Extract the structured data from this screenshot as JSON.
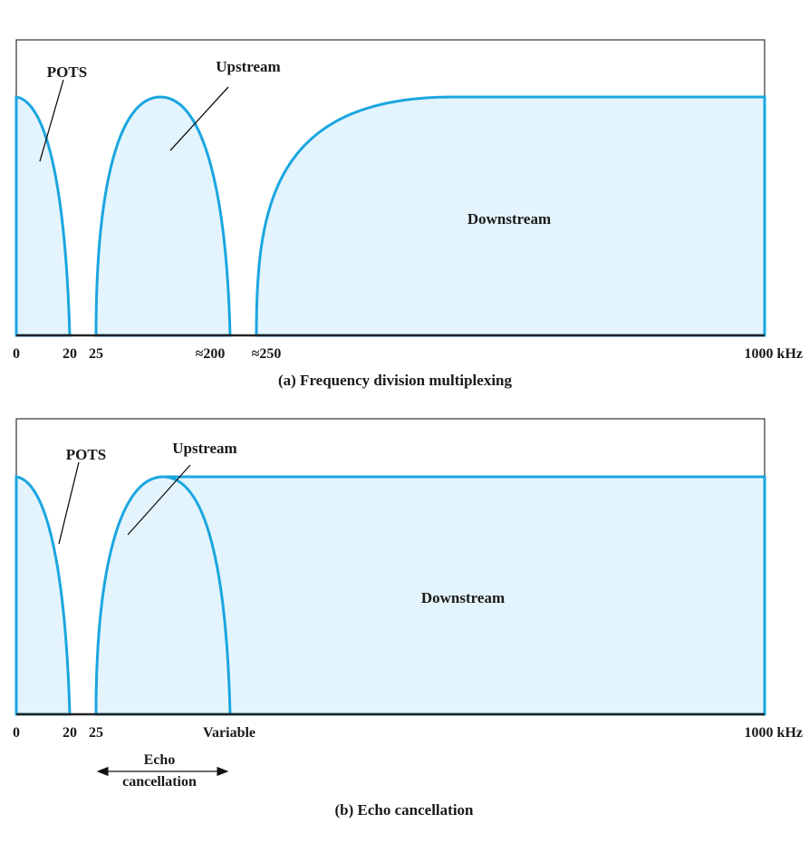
{
  "panel_a": {
    "caption": "(a) Frequency division multiplexing",
    "pots_label": "POTS",
    "upstream_label": "Upstream",
    "downstream_label": "Downstream",
    "ticks": [
      "0",
      "20",
      "25",
      "≈200",
      "≈250",
      "1000 kHz"
    ]
  },
  "panel_b": {
    "caption": "(b) Echo cancellation",
    "pots_label": "POTS",
    "upstream_label": "Upstream",
    "downstream_label": "Downstream",
    "ticks": [
      "0",
      "20",
      "25",
      "Variable",
      "1000 kHz"
    ],
    "echo_label_line1": "Echo",
    "echo_label_line2": "cancellation"
  },
  "colors": {
    "band_fill": "#e4f4fc",
    "band_stroke": "#1aa6e0"
  }
}
